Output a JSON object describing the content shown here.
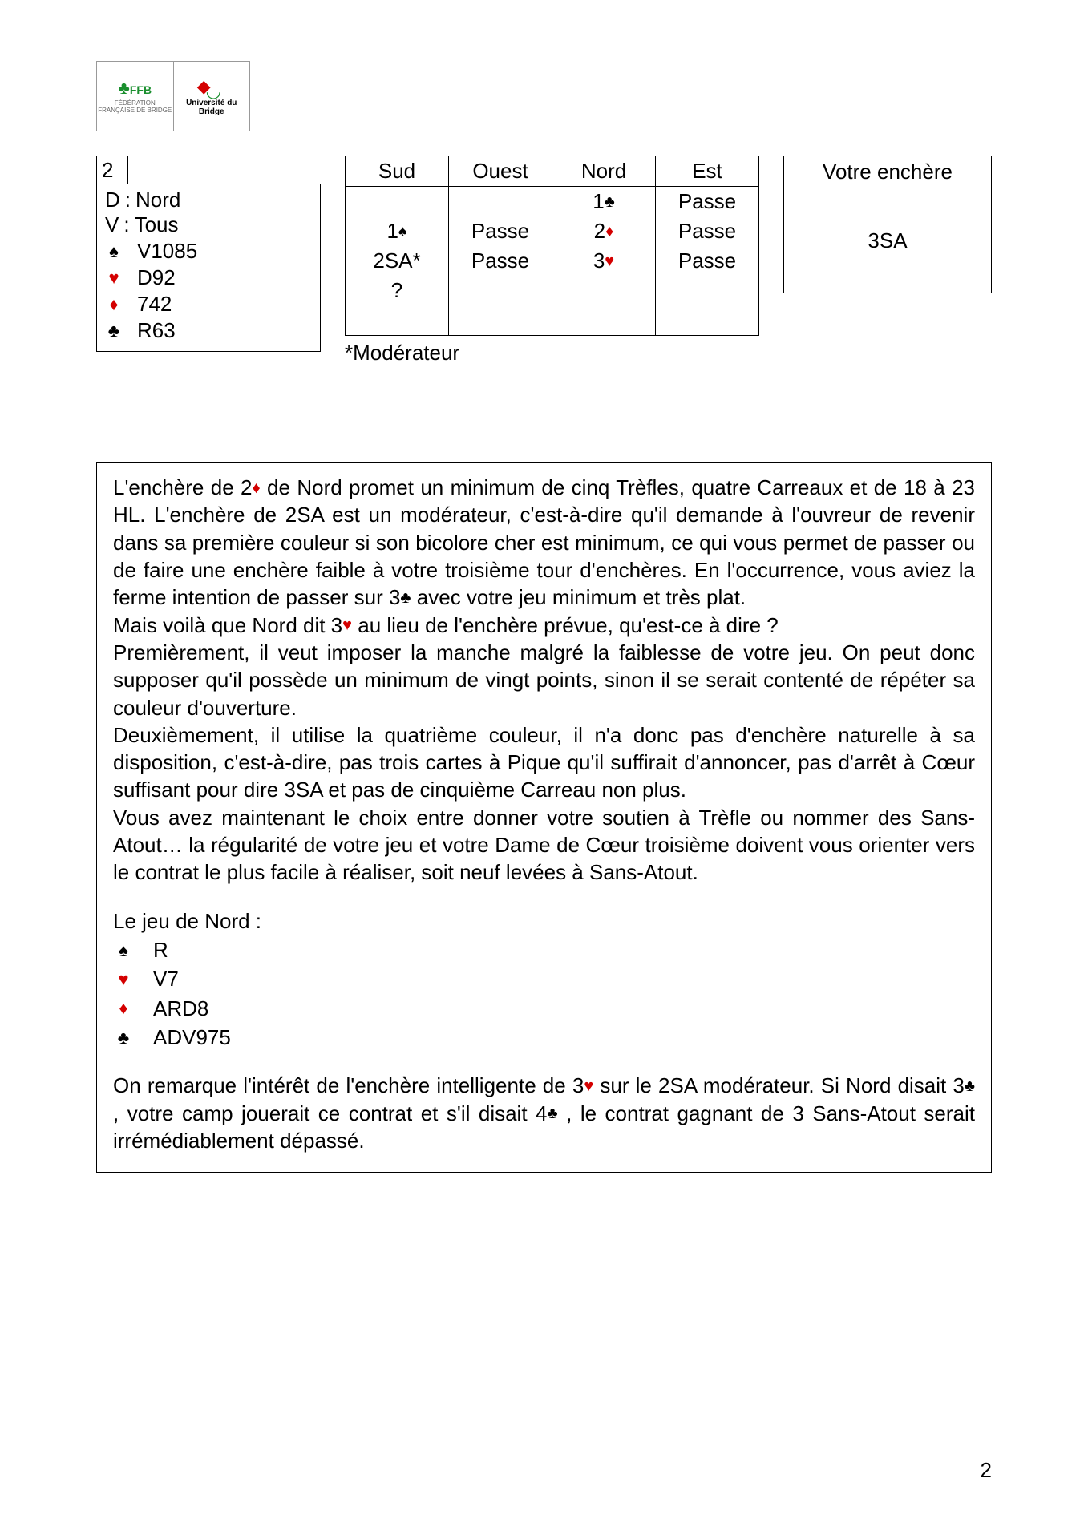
{
  "logo": {
    "ffb_label": "FFB",
    "ffb_sub": "FÉDÉRATION\nFRANÇAISE\nDE BRIDGE",
    "uni_label": "Université\ndu Bridge"
  },
  "deal": {
    "number": "2",
    "dealer_label": "D",
    "dealer": "Nord",
    "vul_label": "V",
    "vul": "Tous",
    "hand": {
      "spades": "V1085",
      "hearts": "D92",
      "diamonds": "742",
      "clubs": "R63"
    }
  },
  "suits": {
    "spade": "♠",
    "heart": "♥",
    "diamond": "♦",
    "club": "♣"
  },
  "bidding": {
    "headers": [
      "Sud",
      "Ouest",
      "Nord",
      "Est"
    ],
    "rows": [
      [
        {
          "t": ""
        },
        {
          "t": ""
        },
        {
          "t": "1",
          "s": "club"
        },
        {
          "t": "Passe"
        }
      ],
      [
        {
          "t": "1",
          "s": "spade"
        },
        {
          "t": "Passe"
        },
        {
          "t": "2",
          "s": "diamond"
        },
        {
          "t": "Passe"
        }
      ],
      [
        {
          "t": "2SA*"
        },
        {
          "t": "Passe"
        },
        {
          "t": "3",
          "s": "heart"
        },
        {
          "t": "Passe"
        }
      ],
      [
        {
          "t": "?"
        },
        {
          "t": ""
        },
        {
          "t": ""
        },
        {
          "t": ""
        }
      ],
      [
        {
          "t": ""
        },
        {
          "t": ""
        },
        {
          "t": ""
        },
        {
          "t": ""
        }
      ]
    ],
    "note": "*Modérateur"
  },
  "answer": {
    "title": "Votre enchère",
    "value": "3SA"
  },
  "explanation": {
    "para1a": "L'enchère de 2",
    "para1b": " de Nord promet un minimum de cinq Trèfles, quatre Carreaux et de 18 à 23 HL. L'enchère de 2SA est un modérateur, c'est-à-dire qu'il demande à l'ouvreur de revenir dans sa première couleur si son bicolore cher est minimum, ce qui vous permet de passer ou de faire une enchère faible à votre troisième tour d'enchères. En l'occurrence, vous aviez la ferme intention de passer sur 3",
    "para1c": " avec votre jeu minimum et très plat.",
    "para2a": "Mais voilà que Nord dit 3",
    "para2b": " au lieu de l'enchère prévue, qu'est-ce à dire ?",
    "para3": "Premièrement, il veut imposer la manche malgré la faiblesse de votre jeu. On peut donc supposer qu'il possède un minimum de vingt points, sinon il se serait contenté de répéter sa couleur d'ouverture.",
    "para4": "Deuxièmement, il utilise la quatrième couleur, il n'a donc pas d'enchère naturelle à sa disposition, c'est-à-dire, pas trois cartes à Pique qu'il suffirait d'annoncer, pas d'arrêt à Cœur suffisant pour dire 3SA et pas de cinquième Carreau non plus.",
    "para5": "Vous avez maintenant le choix entre donner votre soutien à Trèfle ou nommer des Sans-Atout… la régularité de votre jeu et votre Dame de Cœur troisième doivent vous orienter vers le contrat le plus facile à réaliser, soit neuf levées à Sans-Atout.",
    "north_title": "Le jeu de Nord :",
    "north": {
      "spades": "R",
      "hearts": "V7",
      "diamonds": "ARD8",
      "clubs": "ADV975"
    },
    "para6a": "On remarque l'intérêt de l'enchère intelligente de 3",
    "para6b": " sur le 2SA modérateur. Si Nord disait 3",
    "para6c": " , votre camp jouerait ce contrat et s'il disait 4",
    "para6d": " , le contrat gagnant de 3 Sans-Atout serait irrémédiablement dépassé."
  },
  "page_number": "2"
}
